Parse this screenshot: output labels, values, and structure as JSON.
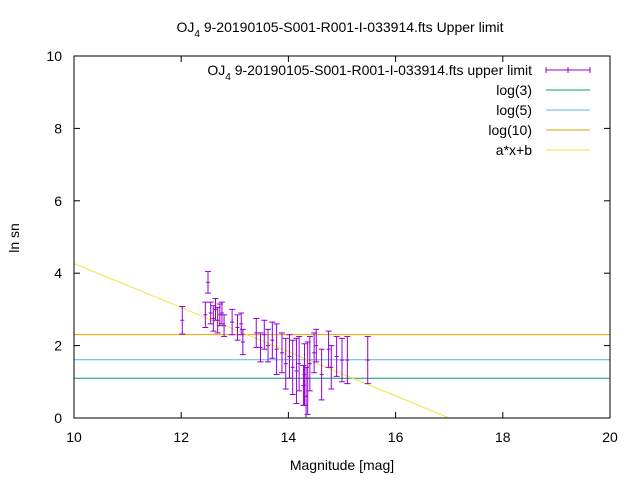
{
  "chart_data": {
    "type": "scatter",
    "title": "OJ 4 9-20190105-S001-R001-I-033914.fts Upper limit",
    "title_parts": {
      "pre": "OJ",
      "sub": "4",
      "post": " 9-20190105-S001-R001-I-033914.fts Upper limit"
    },
    "xlabel": "Magnitude [mag]",
    "ylabel": "ln sn",
    "xlim": [
      10,
      20
    ],
    "ylim": [
      0,
      10
    ],
    "xticks": [
      10,
      12,
      14,
      16,
      18,
      20
    ],
    "yticks": [
      0,
      2,
      4,
      6,
      8,
      10
    ],
    "grid": false,
    "legend_position": "top-right",
    "series": [
      {
        "name": "OJ 4 9-20190105-S001-R001-I-033914.fts upper limit",
        "name_parts": {
          "pre": "OJ",
          "sub": "4",
          "post": " 9-20190105-S001-R001-I-033914.fts upper limit"
        },
        "kind": "errorbars",
        "color": "#9400d3",
        "points": [
          {
            "x": 12.02,
            "y": 2.7,
            "err": 0.38
          },
          {
            "x": 12.45,
            "y": 2.85,
            "err": 0.35
          },
          {
            "x": 12.5,
            "y": 3.75,
            "err": 0.3
          },
          {
            "x": 12.55,
            "y": 2.9,
            "err": 0.3
          },
          {
            "x": 12.6,
            "y": 2.75,
            "err": 0.35
          },
          {
            "x": 12.64,
            "y": 3.0,
            "err": 0.3
          },
          {
            "x": 12.68,
            "y": 2.7,
            "err": 0.35
          },
          {
            "x": 12.72,
            "y": 2.85,
            "err": 0.3
          },
          {
            "x": 12.76,
            "y": 2.9,
            "err": 0.3
          },
          {
            "x": 12.8,
            "y": 2.55,
            "err": 0.3
          },
          {
            "x": 12.95,
            "y": 2.65,
            "err": 0.35
          },
          {
            "x": 13.05,
            "y": 2.5,
            "err": 0.35
          },
          {
            "x": 13.12,
            "y": 2.6,
            "err": 0.3
          },
          {
            "x": 13.15,
            "y": 2.1,
            "err": 0.35
          },
          {
            "x": 13.4,
            "y": 2.35,
            "err": 0.4
          },
          {
            "x": 13.48,
            "y": 1.95,
            "err": 0.4
          },
          {
            "x": 13.55,
            "y": 2.3,
            "err": 0.4
          },
          {
            "x": 13.62,
            "y": 2.0,
            "err": 0.45
          },
          {
            "x": 13.7,
            "y": 2.15,
            "err": 0.5
          },
          {
            "x": 13.78,
            "y": 1.9,
            "err": 0.7
          },
          {
            "x": 13.88,
            "y": 1.8,
            "err": 0.55
          },
          {
            "x": 13.95,
            "y": 1.5,
            "err": 0.7
          },
          {
            "x": 14.02,
            "y": 1.7,
            "err": 0.6
          },
          {
            "x": 14.08,
            "y": 1.4,
            "err": 0.75
          },
          {
            "x": 14.15,
            "y": 1.3,
            "err": 0.9
          },
          {
            "x": 14.2,
            "y": 1.5,
            "err": 0.75
          },
          {
            "x": 14.28,
            "y": 0.9,
            "err": 0.55
          },
          {
            "x": 14.3,
            "y": 1.2,
            "err": 0.85
          },
          {
            "x": 14.33,
            "y": 0.6,
            "err": 0.8
          },
          {
            "x": 14.36,
            "y": 1.1,
            "err": 1.0
          },
          {
            "x": 14.4,
            "y": 1.5,
            "err": 0.75
          },
          {
            "x": 14.48,
            "y": 1.8,
            "err": 0.55
          },
          {
            "x": 14.52,
            "y": 2.0,
            "err": 0.45
          },
          {
            "x": 14.62,
            "y": 1.2,
            "err": 0.7
          },
          {
            "x": 14.75,
            "y": 1.9,
            "err": 0.5
          },
          {
            "x": 14.8,
            "y": 1.4,
            "err": 0.6
          },
          {
            "x": 14.9,
            "y": 1.7,
            "err": 0.55
          },
          {
            "x": 15.0,
            "y": 1.6,
            "err": 0.6
          },
          {
            "x": 15.1,
            "y": 1.6,
            "err": 0.65
          },
          {
            "x": 15.48,
            "y": 1.6,
            "err": 0.65
          }
        ]
      },
      {
        "name": "log(3)",
        "kind": "hline",
        "y": 1.0986,
        "color": "#009e73"
      },
      {
        "name": "log(5)",
        "kind": "hline",
        "y": 1.6094,
        "color": "#56b4e9"
      },
      {
        "name": "log(10)",
        "kind": "hline",
        "y": 2.3026,
        "color": "#e69f00"
      },
      {
        "name": "a*x+b",
        "kind": "line",
        "slope": -0.61,
        "intercept": 10.37,
        "color": "#f0e442"
      }
    ]
  }
}
